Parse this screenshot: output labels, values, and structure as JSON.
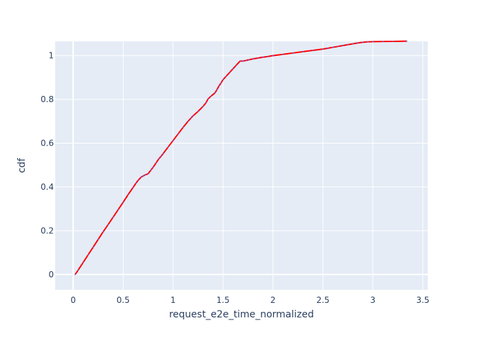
{
  "chart_data": {
    "type": "line",
    "xlabel": "request_e2e_time_normalized",
    "ylabel": "cdf",
    "xlim": [
      -0.18,
      3.55
    ],
    "ylim": [
      -0.07,
      1.065
    ],
    "x_ticks": [
      {
        "value": 0,
        "label": "0"
      },
      {
        "value": 0.5,
        "label": "0.5"
      },
      {
        "value": 1,
        "label": "1"
      },
      {
        "value": 1.5,
        "label": "1.5"
      },
      {
        "value": 2,
        "label": "2"
      },
      {
        "value": 2.5,
        "label": "2.5"
      },
      {
        "value": 3,
        "label": "3"
      },
      {
        "value": 3.5,
        "label": "3.5"
      }
    ],
    "y_ticks": [
      {
        "value": 0,
        "label": "0"
      },
      {
        "value": 0.2,
        "label": "0.2"
      },
      {
        "value": 0.4,
        "label": "0.4"
      },
      {
        "value": 0.6,
        "label": "0.6"
      },
      {
        "value": 0.8,
        "label": "0.8"
      },
      {
        "value": 1,
        "label": "1"
      }
    ],
    "grid": true,
    "colors": {
      "plot_background": "#e5ecf6",
      "grid": "#ffffff",
      "series_line": "#ff0000",
      "series_marker": "#636efa"
    },
    "series": [
      {
        "x": [
          0.02,
          0.05,
          0.1,
          0.15,
          0.2,
          0.25,
          0.3,
          0.35,
          0.4,
          0.45,
          0.5,
          0.55,
          0.6,
          0.63,
          0.65,
          0.68,
          0.7,
          0.72,
          0.75,
          0.78,
          0.8,
          0.83,
          0.86,
          0.88,
          0.9,
          0.95,
          1.0,
          1.05,
          1.1,
          1.15,
          1.18,
          1.2,
          1.25,
          1.3,
          1.33,
          1.35,
          1.38,
          1.42,
          1.44,
          1.46,
          1.48,
          1.5,
          1.53,
          1.57,
          1.6,
          1.63,
          1.67,
          1.7,
          1.73,
          1.76,
          1.8,
          1.85,
          1.9,
          1.95,
          2.0,
          2.1,
          2.2,
          2.3,
          2.4,
          2.5,
          2.55,
          2.6,
          2.65,
          2.7,
          2.75,
          2.8,
          2.85,
          2.9,
          2.95,
          3.0,
          3.1,
          3.2,
          3.34
        ],
        "y": [
          0.0,
          0.02,
          0.055,
          0.09,
          0.125,
          0.16,
          0.195,
          0.228,
          0.262,
          0.296,
          0.33,
          0.365,
          0.398,
          0.418,
          0.43,
          0.445,
          0.45,
          0.455,
          0.46,
          0.478,
          0.49,
          0.51,
          0.53,
          0.54,
          0.552,
          0.582,
          0.612,
          0.642,
          0.672,
          0.7,
          0.715,
          0.725,
          0.745,
          0.768,
          0.785,
          0.802,
          0.815,
          0.83,
          0.845,
          0.862,
          0.875,
          0.89,
          0.905,
          0.925,
          0.94,
          0.955,
          0.975,
          0.975,
          0.978,
          0.981,
          0.985,
          0.989,
          0.993,
          0.996,
          1.0,
          1.006,
          1.012,
          1.018,
          1.024,
          1.03,
          1.034,
          1.038,
          1.042,
          1.046,
          1.05,
          1.054,
          1.058,
          1.061,
          1.063,
          1.064,
          1.0645,
          1.065,
          1.066
        ]
      }
    ]
  }
}
